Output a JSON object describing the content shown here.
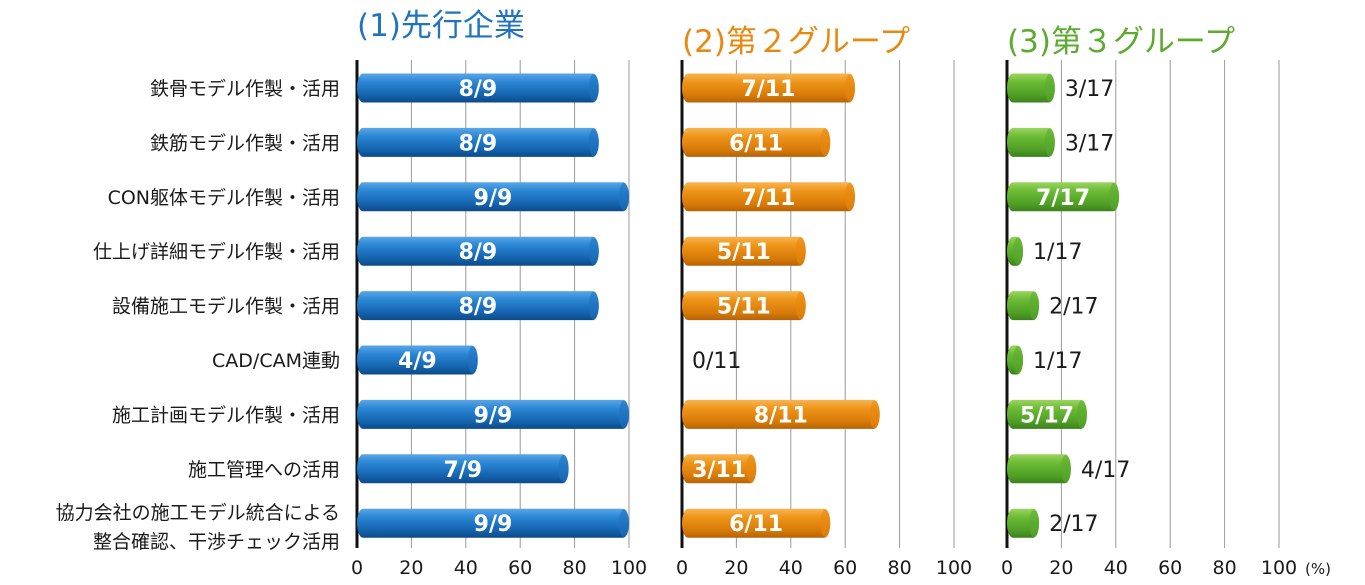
{
  "chart_data": {
    "type": "bar",
    "orientation": "horizontal",
    "categories": [
      "鉄骨モデル作製・活用",
      "鉄筋モデル作製・活用",
      "CON躯体モデル作製・活用",
      "仕上げ詳細モデル作製・活用",
      "設備施工モデル作製・活用",
      "CAD/CAM連動",
      "施工計画モデル作製・活用",
      "施工管理への活用",
      "協力会社の施工モデル統合による\n整合確認、干渉チェック活用"
    ],
    "xlim": [
      0,
      100
    ],
    "x_ticks": [
      "0",
      "20",
      "40",
      "60",
      "80",
      "100"
    ],
    "x_unit": "(%)",
    "grid": true,
    "series": [
      {
        "name": "(1)先行企業",
        "color": "#1f73c0",
        "values": [
          88.9,
          88.9,
          100,
          88.9,
          88.9,
          44.4,
          100,
          77.8,
          100
        ],
        "labels": [
          "8/9",
          "8/9",
          "9/9",
          "8/9",
          "8/9",
          "4/9",
          "9/9",
          "7/9",
          "9/9"
        ]
      },
      {
        "name": "(2)第２グループ",
        "color": "#e8880f",
        "values": [
          63.6,
          54.5,
          63.6,
          45.5,
          45.5,
          0,
          72.7,
          27.3,
          54.5
        ],
        "labels": [
          "7/11",
          "6/11",
          "7/11",
          "5/11",
          "5/11",
          "0/11",
          "8/11",
          "3/11",
          "6/11"
        ]
      },
      {
        "name": "(3)第３グループ",
        "color": "#5aab2e",
        "values": [
          17.6,
          17.6,
          41.2,
          5.9,
          11.8,
          5.9,
          29.4,
          23.5,
          11.8
        ],
        "labels": [
          "3/17",
          "3/17",
          "7/17",
          "1/17",
          "2/17",
          "1/17",
          "5/17",
          "4/17",
          "2/17"
        ]
      }
    ]
  }
}
